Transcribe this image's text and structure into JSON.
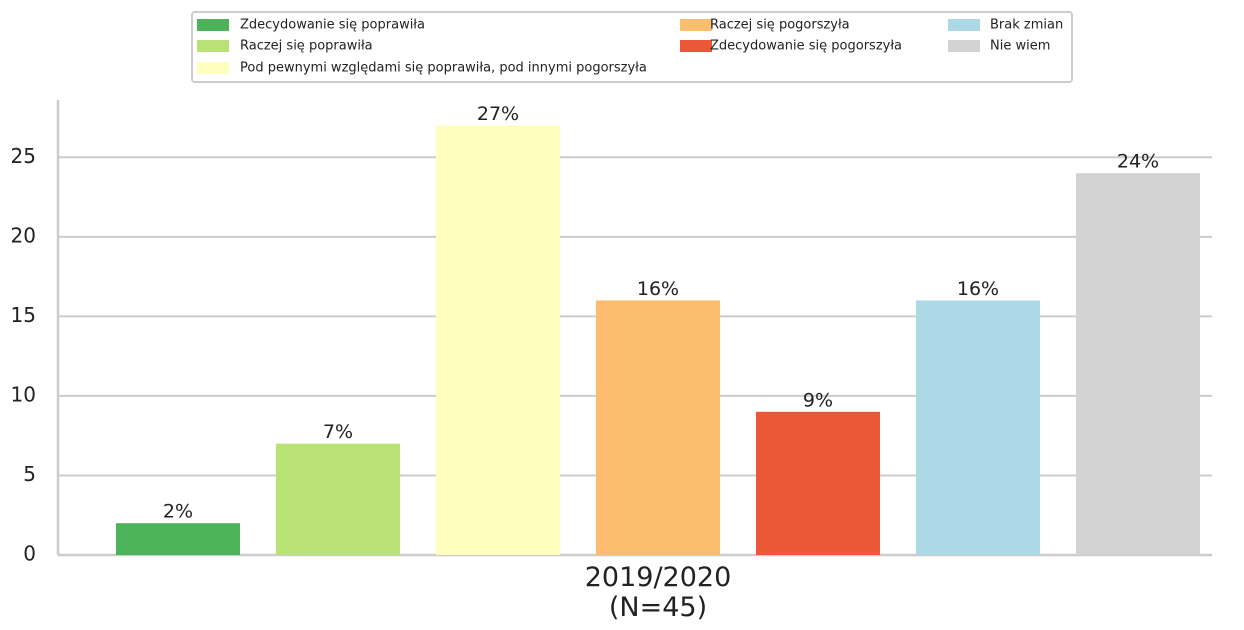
{
  "chart_data": {
    "type": "bar",
    "categories": [
      "2019/2020\n(N=45)"
    ],
    "series": [
      {
        "name": "Zdecydowanie się poprawiła",
        "color": "#4cb35a",
        "values": [
          2
        ],
        "value_labels": [
          "2%"
        ]
      },
      {
        "name": "Raczej się poprawiła",
        "color": "#b8e275",
        "values": [
          7
        ],
        "value_labels": [
          "7%"
        ]
      },
      {
        "name": "Pod pewnymi względami się poprawiła, pod innymi pogorszyła",
        "color": "#fefebe",
        "values": [
          27
        ],
        "value_labels": [
          "27%"
        ]
      },
      {
        "name": "Raczej się pogorszyła",
        "color": "#fcbd6f",
        "values": [
          16
        ],
        "value_labels": [
          "16%"
        ]
      },
      {
        "name": "Zdecydowanie się pogorszyła",
        "color": "#eb5838",
        "values": [
          9
        ],
        "value_labels": [
          "9%"
        ]
      },
      {
        "name": "Brak zmian",
        "color": "#add8e6",
        "values": [
          16
        ],
        "value_labels": [
          "16%"
        ]
      },
      {
        "name": "Nie wiem",
        "color": "#d3d3d3",
        "values": [
          24
        ],
        "value_labels": [
          "24%"
        ]
      }
    ],
    "ylim": [
      0,
      28.6
    ],
    "yticks": [
      0,
      5,
      10,
      15,
      20,
      25
    ],
    "grid": true,
    "legend": "top"
  }
}
